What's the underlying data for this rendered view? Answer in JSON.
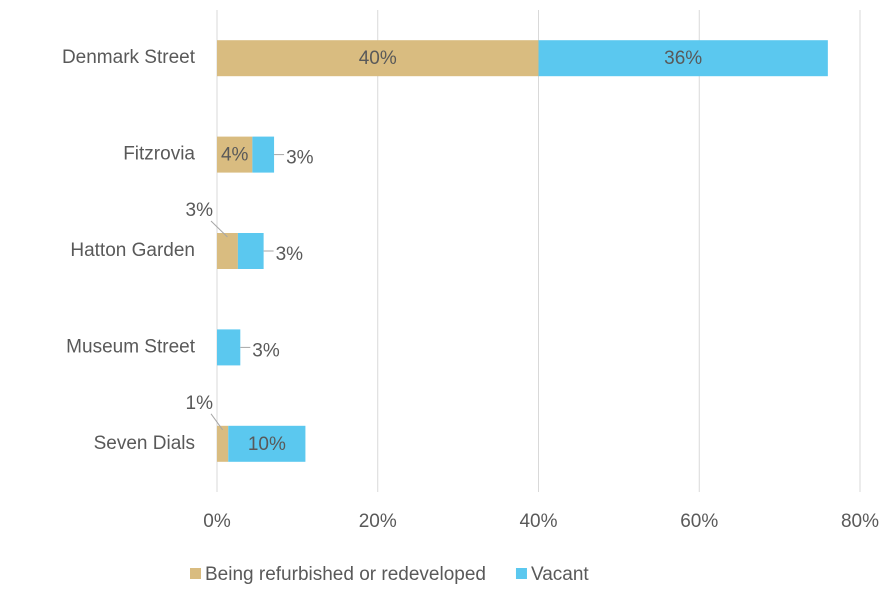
{
  "chart_data": {
    "type": "stacked_barh",
    "categories": [
      "Denmark Street",
      "Fitzrovia",
      "Hatton Garden",
      "Museum Street",
      "Seven Dials"
    ],
    "series": [
      {
        "name": "Being refurbished or redeveloped",
        "color": "#d9bc80",
        "values": [
          40,
          4.4,
          2.6,
          null,
          1.4
        ],
        "value_labels": [
          "40%",
          "4%",
          "3%",
          null,
          "1%"
        ]
      },
      {
        "name": "Vacant",
        "color": "#5bc8ef",
        "values": [
          36,
          2.7,
          3.2,
          2.9,
          9.6
        ],
        "value_labels": [
          "36%",
          "3%",
          "3%",
          "3%",
          "10%"
        ]
      }
    ],
    "xlim": [
      0,
      80
    ],
    "xticks": [
      {
        "value": 0,
        "label": "0%"
      },
      {
        "value": 20,
        "label": "20%"
      },
      {
        "value": 40,
        "label": "40%"
      },
      {
        "value": 60,
        "label": "60%"
      },
      {
        "value": 80,
        "label": "80%"
      }
    ],
    "grid": true,
    "legend": "bottom"
  }
}
